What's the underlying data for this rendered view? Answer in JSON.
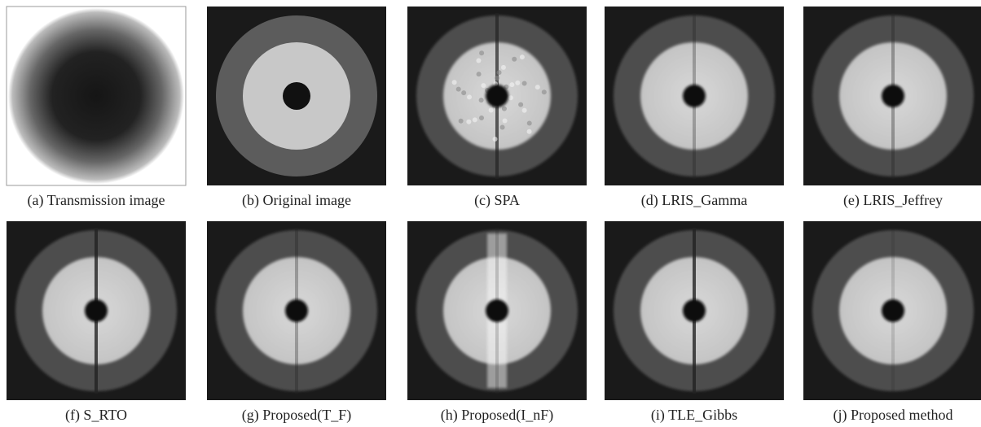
{
  "panels": [
    {
      "caption": "(a) Transmission image"
    },
    {
      "caption": "(b) Original image"
    },
    {
      "caption": "(c) SPA"
    },
    {
      "caption": "(d) LRIS_Gamma"
    },
    {
      "caption": "(e) LRIS_Jeffrey"
    },
    {
      "caption": "(f) S_RTO"
    },
    {
      "caption": "(g) Proposed(T_F)"
    },
    {
      "caption": "(h) Proposed(I_nF)"
    },
    {
      "caption": "(i) TLE_Gibbs"
    },
    {
      "caption": "(j) Proposed method"
    }
  ]
}
